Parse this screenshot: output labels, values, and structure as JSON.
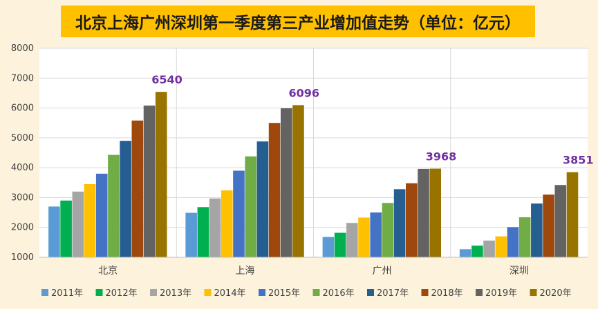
{
  "chart_data": {
    "type": "bar",
    "title": "北京上海广州深圳第一季度第三产业增加值走势（单位：亿元）",
    "xlabel": "",
    "ylabel": "",
    "ylim": [
      1000,
      8000
    ],
    "yticks": [
      1000,
      2000,
      3000,
      4000,
      5000,
      6000,
      7000,
      8000
    ],
    "grid": true,
    "legend_position": "bottom",
    "categories": [
      "北京",
      "上海",
      "广州",
      "深圳"
    ],
    "series": [
      {
        "name": "2011年",
        "color": "#5b9bd5",
        "values": [
          2700,
          2490,
          1680,
          1270
        ]
      },
      {
        "name": "2012年",
        "color": "#00b050",
        "values": [
          2900,
          2680,
          1820,
          1390
        ]
      },
      {
        "name": "2013年",
        "color": "#a5a5a5",
        "values": [
          3200,
          2970,
          2150,
          1560
        ]
      },
      {
        "name": "2014年",
        "color": "#ffc000",
        "values": [
          3450,
          3240,
          2330,
          1700
        ]
      },
      {
        "name": "2015年",
        "color": "#4472c4",
        "values": [
          3800,
          3900,
          2500,
          2010
        ]
      },
      {
        "name": "2016年",
        "color": "#70ad47",
        "values": [
          4430,
          4380,
          2820,
          2340
        ]
      },
      {
        "name": "2017年",
        "color": "#255e91",
        "values": [
          4900,
          4880,
          3280,
          2800
        ]
      },
      {
        "name": "2018年",
        "color": "#9e480e",
        "values": [
          5580,
          5500,
          3480,
          3100
        ]
      },
      {
        "name": "2019年",
        "color": "#636363",
        "values": [
          6080,
          5990,
          3960,
          3420
        ]
      },
      {
        "name": "2020年",
        "color": "#997300",
        "values": [
          6540,
          6096,
          3968,
          3851
        ]
      }
    ],
    "data_labels": [
      "6540",
      "6096",
      "3968",
      "3851"
    ]
  }
}
